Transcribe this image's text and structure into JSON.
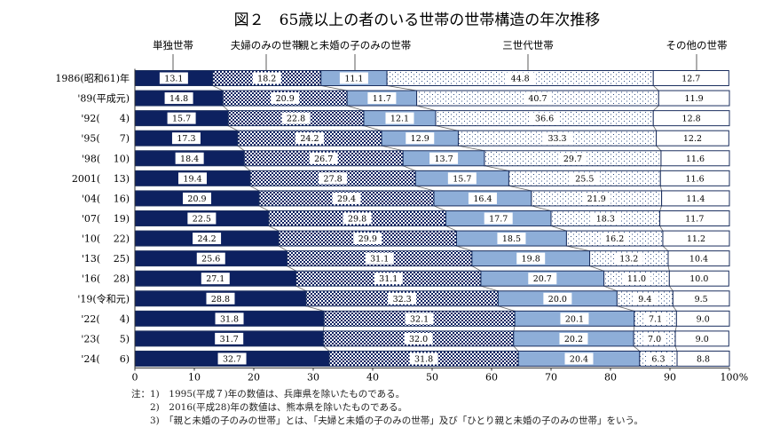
{
  "chart_data": {
    "type": "bar",
    "orientation": "horizontal",
    "stacked": true,
    "title": "図２　65歳以上の者のいる世帯の世帯構造の年次推移",
    "categories": [
      "1986(昭和61)年",
      "'89(平成元)",
      "'92(　　4)",
      "'95(　　7)",
      "'98(　 10)",
      "2001(　 13)",
      "'04(　 16)",
      "'07(　 19)",
      "'10(　 22)",
      "'13(　 25)",
      "'16(　 28)",
      "'19(令和元)",
      "'22(　　4)",
      "'23(　　5)",
      "'24(　　6)"
    ],
    "series": [
      {
        "name": "単独世帯",
        "color": "#0d2160",
        "pattern": "solid",
        "values": [
          13.1,
          14.8,
          15.7,
          17.3,
          18.4,
          19.4,
          20.9,
          22.5,
          24.2,
          25.6,
          27.1,
          28.8,
          31.8,
          31.7,
          32.7
        ]
      },
      {
        "name": "夫婦のみの世帯",
        "color": "#0d2160",
        "pattern": "checker",
        "values": [
          18.2,
          20.9,
          22.8,
          24.2,
          26.7,
          27.8,
          29.4,
          29.8,
          29.9,
          31.1,
          31.1,
          32.3,
          32.1,
          32.0,
          31.8
        ]
      },
      {
        "name": "親と未婚の子のみの世帯",
        "color": "#8eaed8",
        "pattern": "solid",
        "values": [
          11.1,
          11.7,
          12.1,
          12.9,
          13.7,
          15.7,
          16.4,
          17.7,
          18.5,
          19.8,
          20.7,
          20.0,
          20.1,
          20.2,
          20.4
        ]
      },
      {
        "name": "三世代世帯",
        "color": "#2a4a80",
        "pattern": "dots",
        "values": [
          44.8,
          40.7,
          36.6,
          33.3,
          29.7,
          25.5,
          21.9,
          18.3,
          16.2,
          13.2,
          11.0,
          9.4,
          7.1,
          7.0,
          6.3
        ]
      },
      {
        "name": "その他の世帯",
        "color": "#ffffff",
        "pattern": "none",
        "values": [
          12.7,
          11.9,
          12.8,
          12.2,
          11.6,
          11.6,
          11.4,
          11.7,
          11.2,
          10.4,
          10.0,
          9.5,
          9.0,
          9.0,
          8.8
        ]
      }
    ],
    "xlim": [
      0,
      100
    ],
    "xticks": [
      "0",
      "10",
      "20",
      "30",
      "40",
      "50",
      "60",
      "70",
      "80",
      "90",
      "100"
    ],
    "xunit": "%",
    "grid": false,
    "legend": "top"
  },
  "notes": [
    "注：1)　1995(平成７)年の数値は、兵庫県を除いたものである。",
    "　　2)　2016(平成28)年の数値は、熊本県を除いたものである。",
    "　　3)　「親と未婚の子のみの世帯」とは、「夫婦と未婚の子のみの世帯」及び「ひとり親と未婚の子のみの世帯」をいう。"
  ]
}
